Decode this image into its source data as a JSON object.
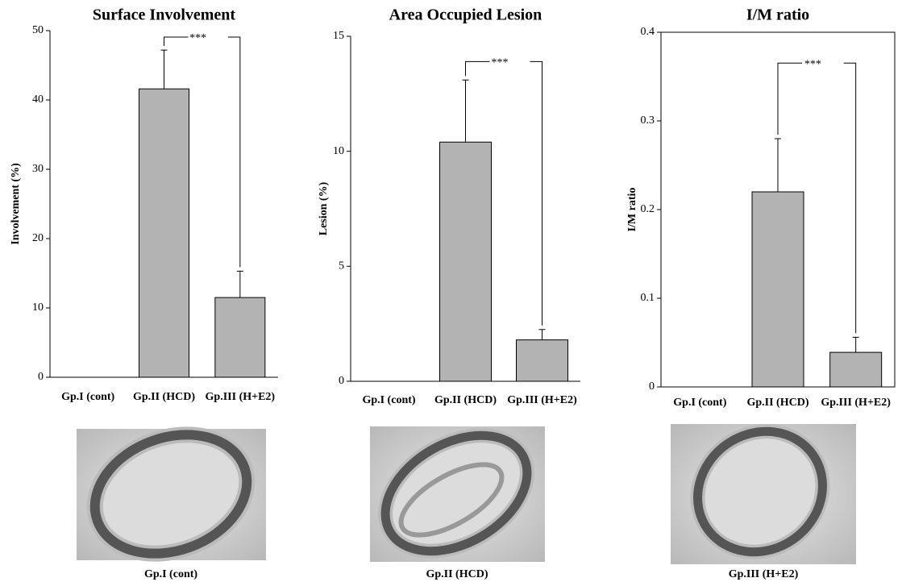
{
  "chart_data": [
    {
      "type": "bar",
      "title": "Surface Involvement",
      "y_label": "Involvement (%)",
      "categories": [
        "Gp.I (cont)",
        "Gp.II (HCD)",
        "Gp.III (H+E2)"
      ],
      "values": [
        0,
        41.6,
        11.5
      ],
      "errors": [
        0,
        5.6,
        3.8
      ],
      "color": "#b3b3b3",
      "ylim": [
        0,
        50
      ],
      "yticks": [
        0,
        10,
        20,
        30,
        40,
        50
      ],
      "annotation": "***",
      "frame": false
    },
    {
      "type": "bar",
      "title": "Area Occupied Lesion",
      "y_label": "Lesion (%)",
      "categories": [
        "Gp.I (cont)",
        "Gp.II (HCD)",
        "Gp.III (H+E2)"
      ],
      "values": [
        0,
        10.4,
        1.8
      ],
      "errors": [
        0,
        2.7,
        0.45
      ],
      "color": "#b3b3b3",
      "ylim": [
        0,
        15
      ],
      "yticks": [
        0,
        5,
        10,
        15
      ],
      "annotation": "***",
      "frame": false
    },
    {
      "type": "bar",
      "title": "I/M ratio",
      "y_label": "I/M ratio",
      "categories": [
        "Gp.I (cont)",
        "Gp.II (HCD)",
        "Gp.III (H+E2)"
      ],
      "values": [
        0,
        0.22,
        0.039
      ],
      "errors": [
        0,
        0.06,
        0.017
      ],
      "color": "#b3b3b3",
      "ylim": [
        0,
        0.4
      ],
      "yticks": [
        0,
        0.1,
        0.2,
        0.3,
        0.4
      ],
      "annotation": "***",
      "frame": true
    }
  ],
  "micrographs": [
    {
      "caption": "Gp.I (cont)"
    },
    {
      "caption": "Gp.II (HCD)"
    },
    {
      "caption": "Gp.III (H+E2)"
    }
  ]
}
